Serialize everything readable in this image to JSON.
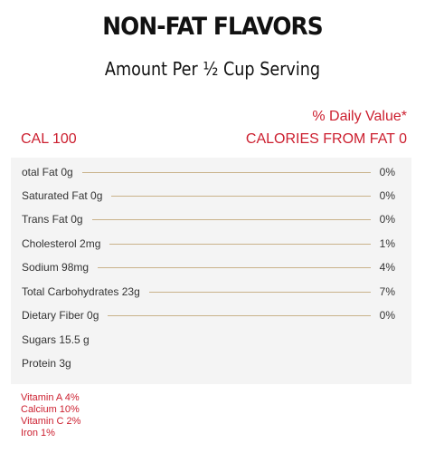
{
  "header": {
    "title": "NON-FAT FLAVORS",
    "serving": "Amount Per ½ Cup Serving"
  },
  "summary": {
    "daily_value_header": "% Daily Value*",
    "calories": "CAL 100",
    "calories_from_fat": "CALORIES FROM FAT 0"
  },
  "nutrients": [
    {
      "label": "otal Fat 0g",
      "pct": "0%"
    },
    {
      "label": "Saturated Fat 0g",
      "pct": "0%"
    },
    {
      "label": "Trans Fat 0g",
      "pct": "0%"
    },
    {
      "label": "Cholesterol 2mg",
      "pct": "1%"
    },
    {
      "label": "Sodium 98mg",
      "pct": "4%"
    },
    {
      "label": "Total Carbohydrates 23g",
      "pct": "7%"
    },
    {
      "label": "Dietary Fiber 0g",
      "pct": "0%"
    },
    {
      "label": "Sugars 15.5 g",
      "pct": ""
    },
    {
      "label": "Protein 3g",
      "pct": ""
    }
  ],
  "vitamins": [
    "Vitamin A 4%",
    "Calcium 10%",
    "Vitamin C 2%",
    "Iron 1%"
  ],
  "colors": {
    "accent": "#cc1f2f",
    "panel_bg": "#f4f4f4",
    "leader_line": "#c9b28a"
  }
}
